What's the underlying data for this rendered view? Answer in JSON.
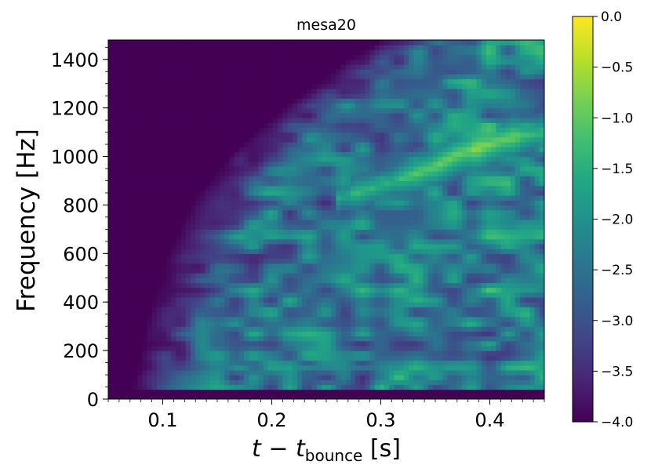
{
  "chart_data": {
    "type": "heatmap",
    "title": "mesa20",
    "xlabel_main": "t − t",
    "xlabel_sub": "bounce",
    "xlabel_unit": " [s]",
    "ylabel": "Frequency [Hz]",
    "xlim": [
      0.05,
      0.45
    ],
    "ylim": [
      0,
      1480
    ],
    "x_ticks": [
      0.1,
      0.2,
      0.3,
      0.4
    ],
    "x_tick_labels": [
      "0.1",
      "0.2",
      "0.3",
      "0.4"
    ],
    "y_ticks": [
      0,
      200,
      400,
      600,
      800,
      1000,
      1200,
      1400
    ],
    "y_tick_labels": [
      "0",
      "200",
      "400",
      "600",
      "800",
      "1000",
      "1200",
      "1400"
    ],
    "colorbar": {
      "range": [
        -4.0,
        0.0
      ],
      "colormap": "viridis",
      "ticks": [
        0.0,
        -0.5,
        -1.0,
        -1.5,
        -2.0,
        -2.5,
        -3.0,
        -3.5,
        -4.0
      ],
      "tick_labels": [
        "0.0",
        "−0.5",
        "−1.0",
        "−1.5",
        "−2.0",
        "−2.5",
        "−3.0",
        "−3.5",
        "−4.0"
      ]
    },
    "features": {
      "empty_until_time": 0.07,
      "onset_edge": [
        [
          0,
          0.07
        ],
        [
          200,
          0.08
        ],
        [
          400,
          0.09
        ],
        [
          600,
          0.105
        ],
        [
          800,
          0.125
        ],
        [
          1000,
          0.16
        ],
        [
          1200,
          0.21
        ],
        [
          1400,
          0.27
        ],
        [
          1480,
          0.3
        ]
      ],
      "low_freq_band": {
        "freq": 80,
        "t_start": 0.07,
        "t_end": 0.15,
        "value": -1.7
      },
      "mid_low_band": {
        "freq": 130,
        "t_start": 0.15,
        "t_end": 0.3,
        "value": -2.0
      },
      "rising_ridge": [
        [
          0.26,
          830,
          -1.2
        ],
        [
          0.3,
          880,
          -1.2
        ],
        [
          0.35,
          960,
          -0.6
        ],
        [
          0.37,
          1010,
          -0.5
        ],
        [
          0.42,
          1080,
          -0.8
        ],
        [
          0.45,
          1100,
          -0.9
        ]
      ],
      "floor_value": -4.0
    }
  }
}
